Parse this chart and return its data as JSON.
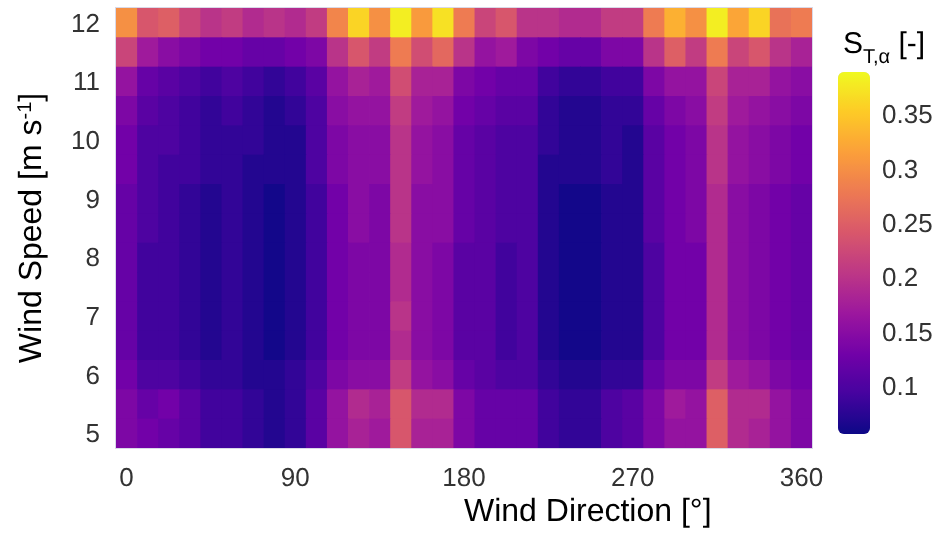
{
  "chart_data": {
    "type": "heatmap",
    "xlabel": "Wind Direction [°]",
    "ylabel": "Wind Speed [m s$^{-1}$]",
    "clabel": "S$_{T,α}$ [-]",
    "x": [
      0,
      11.25,
      22.5,
      33.75,
      45,
      56.25,
      67.5,
      78.75,
      90,
      101.25,
      112.5,
      123.75,
      135,
      146.25,
      157.5,
      168.75,
      180,
      191.25,
      202.5,
      213.75,
      225,
      236.25,
      247.5,
      258.75,
      270,
      281.25,
      292.5,
      303.75,
      315,
      326.25,
      337.5,
      348.75,
      360
    ],
    "y": [
      12,
      11.5,
      11,
      10.5,
      10,
      9.5,
      9,
      8.5,
      8,
      7.5,
      7,
      6.5,
      6,
      5.5,
      5
    ],
    "xlim": [
      -5.625,
      365.625
    ],
    "xticks": [
      0,
      90,
      180,
      270,
      360
    ],
    "ylim": [
      4.75,
      12.25
    ],
    "yticks": [
      5,
      6,
      7,
      8,
      9,
      10,
      11,
      12
    ],
    "clim": [
      0.056,
      0.389
    ],
    "cticks": [
      0.1,
      0.15,
      0.2,
      0.25,
      0.3,
      0.35
    ],
    "cells": [
      [
        0.3,
        0.24,
        0.25,
        0.22,
        0.2,
        0.21,
        0.19,
        0.2,
        0.19,
        0.21,
        0.29,
        0.36,
        0.3,
        0.38,
        0.31,
        0.37,
        0.28,
        0.22,
        0.24,
        0.2,
        0.2,
        0.19,
        0.19,
        0.21,
        0.21,
        0.28,
        0.33,
        0.3,
        0.38,
        0.32,
        0.36,
        0.27,
        0.28
      ],
      [
        0.22,
        0.17,
        0.15,
        0.14,
        0.13,
        0.13,
        0.12,
        0.12,
        0.13,
        0.14,
        0.2,
        0.24,
        0.21,
        0.28,
        0.23,
        0.26,
        0.2,
        0.16,
        0.17,
        0.14,
        0.13,
        0.12,
        0.12,
        0.14,
        0.14,
        0.2,
        0.25,
        0.21,
        0.28,
        0.22,
        0.24,
        0.2,
        0.18
      ],
      [
        0.16,
        0.12,
        0.11,
        0.1,
        0.09,
        0.1,
        0.09,
        0.08,
        0.09,
        0.11,
        0.16,
        0.18,
        0.17,
        0.23,
        0.18,
        0.18,
        0.14,
        0.13,
        0.12,
        0.12,
        0.09,
        0.08,
        0.08,
        0.09,
        0.09,
        0.14,
        0.16,
        0.16,
        0.22,
        0.18,
        0.18,
        0.16,
        0.15
      ],
      [
        0.14,
        0.11,
        0.1,
        0.09,
        0.08,
        0.09,
        0.08,
        0.07,
        0.08,
        0.1,
        0.15,
        0.16,
        0.16,
        0.21,
        0.17,
        0.16,
        0.13,
        0.12,
        0.11,
        0.11,
        0.08,
        0.07,
        0.07,
        0.08,
        0.08,
        0.12,
        0.14,
        0.15,
        0.21,
        0.17,
        0.16,
        0.15,
        0.14
      ],
      [
        0.13,
        0.1,
        0.1,
        0.09,
        0.08,
        0.08,
        0.08,
        0.07,
        0.07,
        0.1,
        0.14,
        0.15,
        0.15,
        0.2,
        0.16,
        0.15,
        0.12,
        0.11,
        0.1,
        0.1,
        0.08,
        0.07,
        0.07,
        0.08,
        0.07,
        0.11,
        0.13,
        0.14,
        0.2,
        0.16,
        0.15,
        0.14,
        0.13
      ],
      [
        0.13,
        0.1,
        0.09,
        0.09,
        0.08,
        0.08,
        0.07,
        0.07,
        0.07,
        0.1,
        0.14,
        0.15,
        0.15,
        0.2,
        0.16,
        0.15,
        0.12,
        0.11,
        0.1,
        0.1,
        0.07,
        0.07,
        0.07,
        0.08,
        0.07,
        0.11,
        0.13,
        0.14,
        0.2,
        0.16,
        0.15,
        0.14,
        0.13
      ],
      [
        0.12,
        0.1,
        0.09,
        0.08,
        0.07,
        0.08,
        0.07,
        0.06,
        0.07,
        0.09,
        0.13,
        0.15,
        0.14,
        0.2,
        0.15,
        0.15,
        0.12,
        0.11,
        0.1,
        0.1,
        0.07,
        0.06,
        0.06,
        0.07,
        0.07,
        0.11,
        0.13,
        0.14,
        0.19,
        0.15,
        0.14,
        0.13,
        0.12
      ],
      [
        0.12,
        0.1,
        0.09,
        0.08,
        0.07,
        0.08,
        0.07,
        0.06,
        0.07,
        0.09,
        0.13,
        0.15,
        0.14,
        0.2,
        0.15,
        0.15,
        0.12,
        0.11,
        0.1,
        0.1,
        0.07,
        0.06,
        0.06,
        0.07,
        0.07,
        0.11,
        0.13,
        0.14,
        0.19,
        0.15,
        0.14,
        0.13,
        0.12
      ],
      [
        0.12,
        0.09,
        0.09,
        0.08,
        0.07,
        0.08,
        0.07,
        0.06,
        0.07,
        0.09,
        0.13,
        0.14,
        0.14,
        0.19,
        0.15,
        0.14,
        0.11,
        0.11,
        0.09,
        0.1,
        0.07,
        0.06,
        0.06,
        0.07,
        0.07,
        0.1,
        0.13,
        0.13,
        0.19,
        0.15,
        0.14,
        0.13,
        0.12
      ],
      [
        0.12,
        0.09,
        0.09,
        0.08,
        0.07,
        0.08,
        0.07,
        0.06,
        0.07,
        0.09,
        0.13,
        0.14,
        0.14,
        0.19,
        0.15,
        0.14,
        0.11,
        0.11,
        0.09,
        0.1,
        0.07,
        0.06,
        0.06,
        0.07,
        0.07,
        0.1,
        0.13,
        0.13,
        0.19,
        0.15,
        0.14,
        0.13,
        0.12
      ],
      [
        0.12,
        0.09,
        0.09,
        0.08,
        0.07,
        0.08,
        0.07,
        0.06,
        0.07,
        0.09,
        0.13,
        0.14,
        0.14,
        0.2,
        0.15,
        0.14,
        0.11,
        0.11,
        0.09,
        0.1,
        0.07,
        0.06,
        0.06,
        0.07,
        0.07,
        0.1,
        0.13,
        0.13,
        0.19,
        0.15,
        0.14,
        0.13,
        0.12
      ],
      [
        0.12,
        0.09,
        0.09,
        0.08,
        0.07,
        0.08,
        0.07,
        0.06,
        0.07,
        0.09,
        0.13,
        0.14,
        0.14,
        0.19,
        0.15,
        0.14,
        0.11,
        0.11,
        0.09,
        0.1,
        0.07,
        0.06,
        0.06,
        0.07,
        0.07,
        0.1,
        0.13,
        0.13,
        0.19,
        0.15,
        0.14,
        0.13,
        0.12
      ],
      [
        0.13,
        0.1,
        0.1,
        0.09,
        0.08,
        0.08,
        0.07,
        0.07,
        0.08,
        0.1,
        0.14,
        0.15,
        0.15,
        0.21,
        0.16,
        0.15,
        0.12,
        0.11,
        0.1,
        0.1,
        0.08,
        0.07,
        0.07,
        0.08,
        0.08,
        0.12,
        0.14,
        0.14,
        0.21,
        0.17,
        0.16,
        0.14,
        0.13
      ],
      [
        0.14,
        0.12,
        0.13,
        0.11,
        0.09,
        0.09,
        0.08,
        0.07,
        0.08,
        0.11,
        0.16,
        0.19,
        0.18,
        0.24,
        0.19,
        0.19,
        0.14,
        0.12,
        0.12,
        0.12,
        0.09,
        0.08,
        0.08,
        0.1,
        0.11,
        0.14,
        0.17,
        0.16,
        0.25,
        0.19,
        0.19,
        0.16,
        0.14
      ],
      [
        0.14,
        0.13,
        0.12,
        0.11,
        0.09,
        0.09,
        0.08,
        0.07,
        0.08,
        0.11,
        0.16,
        0.18,
        0.17,
        0.24,
        0.18,
        0.18,
        0.14,
        0.12,
        0.12,
        0.12,
        0.09,
        0.08,
        0.08,
        0.1,
        0.11,
        0.14,
        0.16,
        0.16,
        0.25,
        0.19,
        0.18,
        0.16,
        0.14
      ]
    ]
  }
}
